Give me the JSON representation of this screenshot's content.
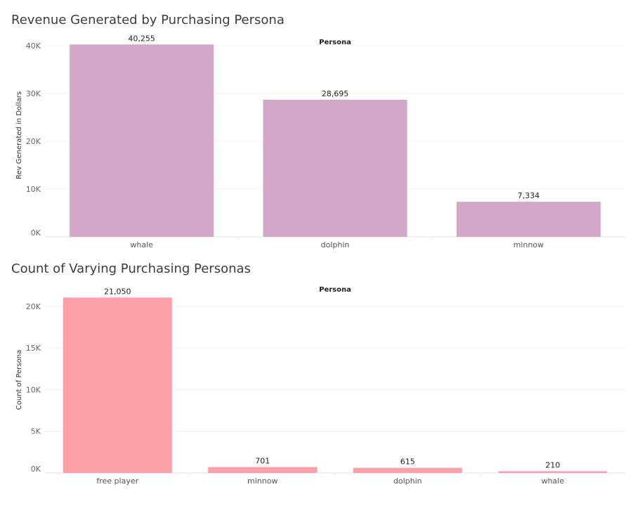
{
  "chart_data": [
    {
      "type": "bar",
      "title": "Revenue Generated by Purchasing Persona",
      "header": "Persona",
      "xlabel": "",
      "ylabel": "Rev Generated in Dollars",
      "categories": [
        "whale",
        "dolphin",
        "minnow"
      ],
      "values": [
        40255,
        28695,
        7334
      ],
      "value_labels": [
        "40,255",
        "28,695",
        "7,334"
      ],
      "yticks": [
        0,
        10000,
        20000,
        30000,
        40000
      ],
      "ytick_labels": [
        "0K",
        "10K",
        "20K",
        "30K",
        "40K"
      ],
      "ylim": [
        0,
        42500
      ],
      "color": "#d4a6c8",
      "grid": true
    },
    {
      "type": "bar",
      "title": "Count of Varying Purchasing Personas",
      "header": "Persona",
      "xlabel": "",
      "ylabel": "Count of Persona",
      "categories": [
        "free player",
        "minnow",
        "dolphin",
        "whale"
      ],
      "values": [
        21050,
        701,
        615,
        210
      ],
      "value_labels": [
        "21,050",
        "701",
        "615",
        "210"
      ],
      "yticks": [
        0,
        5000,
        10000,
        15000,
        20000
      ],
      "ytick_labels": [
        "0K",
        "5K",
        "10K",
        "15K",
        "20K"
      ],
      "ylim": [
        0,
        22350
      ],
      "color": "#fc9fa8",
      "grid": true
    }
  ]
}
